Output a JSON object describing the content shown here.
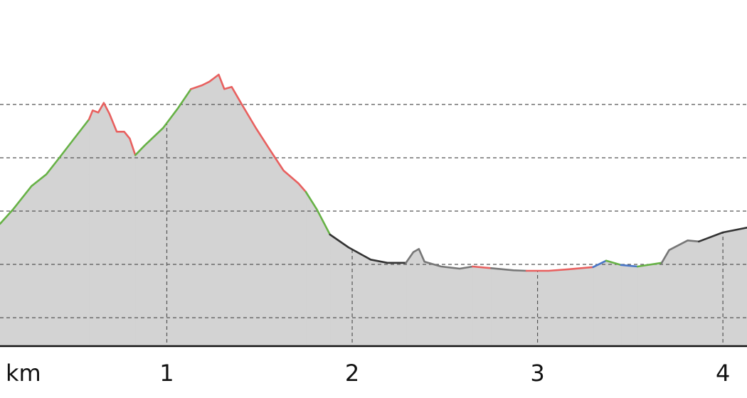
{
  "chart_data": {
    "type": "area",
    "x_label": "km",
    "xlim": [
      0.1,
      4.13
    ],
    "ylim": [
      4.67,
      69.6
    ],
    "xticks": [
      1,
      2,
      3,
      4
    ],
    "ygrid": [
      10,
      20,
      30,
      40,
      50
    ],
    "grid": true,
    "fill": "#d3d3d3",
    "series": [
      {
        "color": "#67b246",
        "x": [
          0.1,
          0.17,
          0.27,
          0.35,
          0.42,
          0.5,
          0.58
        ],
        "values": [
          27.6,
          30.3,
          34.7,
          36.9,
          40,
          43.6,
          47.2
        ]
      },
      {
        "color": "#e8605f",
        "x": [
          0.58,
          0.6,
          0.63,
          0.66,
          0.69,
          0.73,
          0.77,
          0.8,
          0.83
        ],
        "values": [
          47.2,
          48.9,
          48.5,
          50.3,
          48.3,
          44.9,
          44.9,
          43.6,
          40.5
        ]
      },
      {
        "color": "#67b246",
        "x": [
          0.83,
          0.88,
          0.98,
          1.06,
          1.13
        ],
        "values": [
          40.5,
          42.3,
          45.6,
          49.3,
          52.9
        ]
      },
      {
        "color": "#e8605f",
        "x": [
          1.13,
          1.19,
          1.23,
          1.28,
          1.31,
          1.35,
          1.4,
          1.48,
          1.56,
          1.63,
          1.71,
          1.75
        ],
        "values": [
          52.9,
          53.6,
          54.3,
          55.6,
          52.9,
          53.3,
          50.3,
          45.6,
          41.3,
          37.6,
          35.2,
          33.6
        ]
      },
      {
        "color": "#67b246",
        "x": [
          1.75,
          1.81,
          1.88
        ],
        "values": [
          33.6,
          30.3,
          25.6
        ]
      },
      {
        "color": "#333333",
        "x": [
          1.88,
          1.98,
          2.1,
          2.19,
          2.29
        ],
        "values": [
          25.6,
          23.2,
          20.9,
          20.3,
          20.3
        ]
      },
      {
        "color": "#777777",
        "x": [
          2.29,
          2.33,
          2.36,
          2.39,
          2.48,
          2.58,
          2.65
        ],
        "values": [
          20.3,
          22.3,
          22.9,
          20.5,
          19.6,
          19.2,
          19.6
        ]
      },
      {
        "color": "#e8605f",
        "x": [
          2.65,
          2.75
        ],
        "values": [
          19.6,
          19.3
        ]
      },
      {
        "color": "#777777",
        "x": [
          2.75,
          2.87,
          2.94
        ],
        "values": [
          19.3,
          18.9,
          18.8
        ]
      },
      {
        "color": "#e8605f",
        "x": [
          2.94,
          3.06,
          3.17,
          3.3
        ],
        "values": [
          18.8,
          18.8,
          19.1,
          19.5
        ]
      },
      {
        "color": "#4a77c8",
        "x": [
          3.3,
          3.37
        ],
        "values": [
          19.5,
          20.7
        ]
      },
      {
        "color": "#67b246",
        "x": [
          3.37,
          3.45
        ],
        "values": [
          20.7,
          19.9
        ]
      },
      {
        "color": "#4a77c8",
        "x": [
          3.45,
          3.54
        ],
        "values": [
          19.9,
          19.6
        ]
      },
      {
        "color": "#67b246",
        "x": [
          3.54,
          3.67
        ],
        "values": [
          19.6,
          20.3
        ]
      },
      {
        "color": "#777777",
        "x": [
          3.67,
          3.71,
          3.81,
          3.87
        ],
        "values": [
          20.3,
          22.7,
          24.5,
          24.3
        ]
      },
      {
        "color": "#333333",
        "x": [
          3.87,
          4.0,
          4.13
        ],
        "values": [
          24.3,
          26,
          26.9
        ]
      }
    ]
  }
}
